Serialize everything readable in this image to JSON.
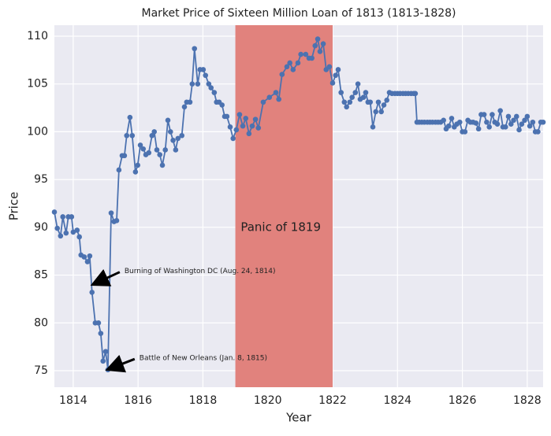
{
  "chart_data": {
    "type": "line",
    "title": "Market Price of Sixteen Million Loan of 1813 (1813-1828)",
    "x_label": "Year",
    "y_label": "Price",
    "xlim": [
      1813.42,
      1828.49
    ],
    "ylim": [
      73.27,
      111.15
    ],
    "xticks": [
      1814,
      1816,
      1818,
      1820,
      1822,
      1824,
      1826,
      1828
    ],
    "yticks": [
      75,
      80,
      85,
      90,
      95,
      100,
      105,
      110
    ],
    "grid": true,
    "markers": true,
    "series": [
      {
        "color": "#4c72b0",
        "x": [
          1813.42,
          1813.51,
          1813.61,
          1813.68,
          1813.78,
          1813.85,
          1813.95,
          1814.0,
          1814.12,
          1814.19,
          1814.24,
          1814.34,
          1814.44,
          1814.51,
          1814.58,
          1814.68,
          1814.78,
          1814.85,
          1814.92,
          1815.0,
          1815.07,
          1815.17,
          1815.26,
          1815.34,
          1815.41,
          1815.51,
          1815.58,
          1815.65,
          1815.75,
          1815.82,
          1815.92,
          1815.99,
          1816.07,
          1816.16,
          1816.24,
          1816.33,
          1816.43,
          1816.5,
          1816.58,
          1816.67,
          1816.75,
          1816.84,
          1816.92,
          1817.0,
          1817.08,
          1817.16,
          1817.23,
          1817.35,
          1817.43,
          1817.5,
          1817.6,
          1817.67,
          1817.74,
          1817.84,
          1817.91,
          1818.01,
          1818.08,
          1818.18,
          1818.25,
          1818.35,
          1818.42,
          1818.5,
          1818.59,
          1818.67,
          1818.74,
          1818.84,
          1818.93,
          1819.03,
          1819.13,
          1819.23,
          1819.32,
          1819.42,
          1819.52,
          1819.62,
          1819.71,
          1819.86,
          1820.05,
          1820.25,
          1820.34,
          1820.44,
          1820.59,
          1820.68,
          1820.78,
          1820.93,
          1821.02,
          1821.17,
          1821.27,
          1821.36,
          1821.46,
          1821.54,
          1821.61,
          1821.71,
          1821.8,
          1821.9,
          1822.0,
          1822.09,
          1822.17,
          1822.26,
          1822.36,
          1822.43,
          1822.53,
          1822.6,
          1822.7,
          1822.78,
          1822.85,
          1822.95,
          1823.02,
          1823.09,
          1823.16,
          1823.24,
          1823.33,
          1823.41,
          1823.5,
          1823.58,
          1823.67,
          1823.75,
          1823.83,
          1823.92,
          1824.0,
          1824.08,
          1824.17,
          1824.25,
          1824.33,
          1824.42,
          1824.5,
          1824.55,
          1824.6,
          1824.67,
          1824.75,
          1824.83,
          1824.92,
          1825.0,
          1825.08,
          1825.17,
          1825.25,
          1825.33,
          1825.42,
          1825.5,
          1825.58,
          1825.67,
          1825.75,
          1825.83,
          1825.92,
          1826.0,
          1826.08,
          1826.17,
          1826.25,
          1826.33,
          1826.42,
          1826.5,
          1826.58,
          1826.67,
          1826.75,
          1826.83,
          1826.92,
          1827.0,
          1827.08,
          1827.17,
          1827.25,
          1827.33,
          1827.42,
          1827.5,
          1827.58,
          1827.67,
          1827.75,
          1827.83,
          1827.92,
          1828.0,
          1828.08,
          1828.17,
          1828.25,
          1828.33,
          1828.42,
          1828.49
        ],
        "values": [
          91.6,
          89.9,
          89.1,
          91.1,
          89.4,
          91.1,
          91.1,
          89.5,
          89.7,
          89,
          87.1,
          86.9,
          86.4,
          87,
          83.2,
          80,
          80,
          78.9,
          76,
          77,
          75.1,
          91.5,
          90.6,
          90.7,
          96,
          97.5,
          97.5,
          99.6,
          101.5,
          99.6,
          95.8,
          96.5,
          98.6,
          98.2,
          97.6,
          97.8,
          99.6,
          100,
          98.1,
          97.6,
          96.5,
          98.1,
          101.2,
          100,
          99.1,
          98.1,
          99.3,
          99.6,
          102.6,
          103.1,
          103.1,
          105,
          108.7,
          105,
          106.5,
          106.5,
          105.9,
          105,
          104.6,
          104.1,
          103.1,
          103.1,
          102.8,
          101.6,
          101.6,
          100.5,
          99.3,
          100.2,
          101.8,
          100.6,
          101.4,
          99.8,
          100.6,
          101.3,
          100.4,
          103.1,
          103.6,
          104.1,
          103.4,
          106,
          106.8,
          107.2,
          106.5,
          107.2,
          108.1,
          108.1,
          107.7,
          107.7,
          109,
          109.7,
          108.4,
          109.2,
          106.5,
          106.8,
          105.1,
          105.9,
          106.5,
          104.1,
          103.1,
          102.6,
          103.1,
          103.6,
          104.1,
          105,
          103.4,
          103.6,
          104.1,
          103.1,
          103.1,
          100.5,
          102.1,
          103.1,
          102.1,
          102.8,
          103.3,
          104.1,
          104,
          104,
          104,
          104,
          104,
          104,
          104,
          104,
          104,
          104,
          101,
          101,
          101,
          101,
          101,
          101,
          101,
          101,
          101,
          101,
          101.2,
          100.3,
          100.6,
          101.4,
          100.5,
          100.8,
          101,
          100,
          100,
          101.2,
          101,
          101,
          100.9,
          100.3,
          101.8,
          101.8,
          101,
          100.5,
          101.8,
          101,
          100.8,
          102.2,
          100.5,
          100.5,
          101.6,
          100.8,
          101.2,
          101.6,
          100.2,
          100.8,
          101.2,
          101.6,
          100.6,
          101,
          100,
          100,
          101,
          101
        ]
      }
    ],
    "spans": [
      {
        "x0": 1819,
        "x1": 1822,
        "color": "#e1827d",
        "label": "Panic of 1819",
        "label_x": 1820.4,
        "label_y": 90
      }
    ],
    "annotations": [
      {
        "text": "Burning of Washington DC (Aug. 24, 1814)",
        "x": 1814.66,
        "y": 84.1,
        "text_x": 1815.58,
        "text_y": 85.4
      },
      {
        "text": "Battle of New Orleans (Jan. 8, 1815)",
        "x": 1815.12,
        "y": 75.2,
        "text_x": 1816.04,
        "text_y": 76.3
      }
    ]
  }
}
